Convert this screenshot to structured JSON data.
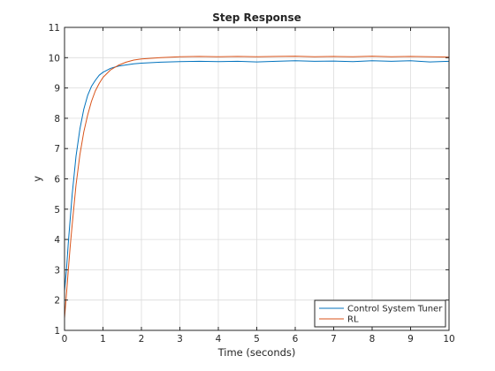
{
  "colors": {
    "background": "#ffffff",
    "axes_box": "#262626",
    "grid": "#dcdcdc",
    "text": "#262626"
  },
  "chart_data": {
    "type": "line",
    "title": "Step Response",
    "xlabel": "Time (seconds)",
    "ylabel": "y",
    "xlim": [
      0,
      10
    ],
    "ylim": [
      1,
      11
    ],
    "xticks": [
      0,
      1,
      2,
      3,
      4,
      5,
      6,
      7,
      8,
      9,
      10
    ],
    "yticks": [
      1,
      2,
      3,
      4,
      5,
      6,
      7,
      8,
      9,
      10,
      11
    ],
    "grid": true,
    "legend_position": "bottom-right",
    "series": [
      {
        "name": "Control System Tuner",
        "color": "#0072bd",
        "x": [
          0,
          0.05,
          0.1,
          0.15,
          0.2,
          0.3,
          0.4,
          0.5,
          0.6,
          0.7,
          0.8,
          0.9,
          1.0,
          1.2,
          1.4,
          1.6,
          1.8,
          2.0,
          2.5,
          3.0,
          3.5,
          4.0,
          4.5,
          5.0,
          5.5,
          6.0,
          6.5,
          7.0,
          7.5,
          8.0,
          8.5,
          9.0,
          9.5,
          10.0
        ],
        "y": [
          2.3,
          3.0,
          3.9,
          4.7,
          5.5,
          6.75,
          7.65,
          8.3,
          8.75,
          9.05,
          9.25,
          9.42,
          9.52,
          9.65,
          9.72,
          9.76,
          9.8,
          9.82,
          9.85,
          9.87,
          9.88,
          9.87,
          9.88,
          9.86,
          9.88,
          9.9,
          9.88,
          9.89,
          9.87,
          9.9,
          9.88,
          9.9,
          9.86,
          9.88
        ]
      },
      {
        "name": "RL",
        "color": "#d95319",
        "x": [
          0,
          0.05,
          0.1,
          0.15,
          0.2,
          0.3,
          0.4,
          0.5,
          0.6,
          0.7,
          0.8,
          0.9,
          1.0,
          1.2,
          1.4,
          1.6,
          1.8,
          2.0,
          2.5,
          3.0,
          3.5,
          4.0,
          4.5,
          5.0,
          5.5,
          6.0,
          6.5,
          7.0,
          7.5,
          8.0,
          8.5,
          9.0,
          9.5,
          10.0
        ],
        "y": [
          1.4,
          2.2,
          3.0,
          3.8,
          4.5,
          5.8,
          6.8,
          7.55,
          8.1,
          8.55,
          8.9,
          9.15,
          9.35,
          9.6,
          9.75,
          9.85,
          9.92,
          9.96,
          10.0,
          10.03,
          10.04,
          10.03,
          10.04,
          10.03,
          10.04,
          10.05,
          10.03,
          10.04,
          10.03,
          10.05,
          10.03,
          10.04,
          10.03,
          10.02
        ]
      }
    ]
  }
}
